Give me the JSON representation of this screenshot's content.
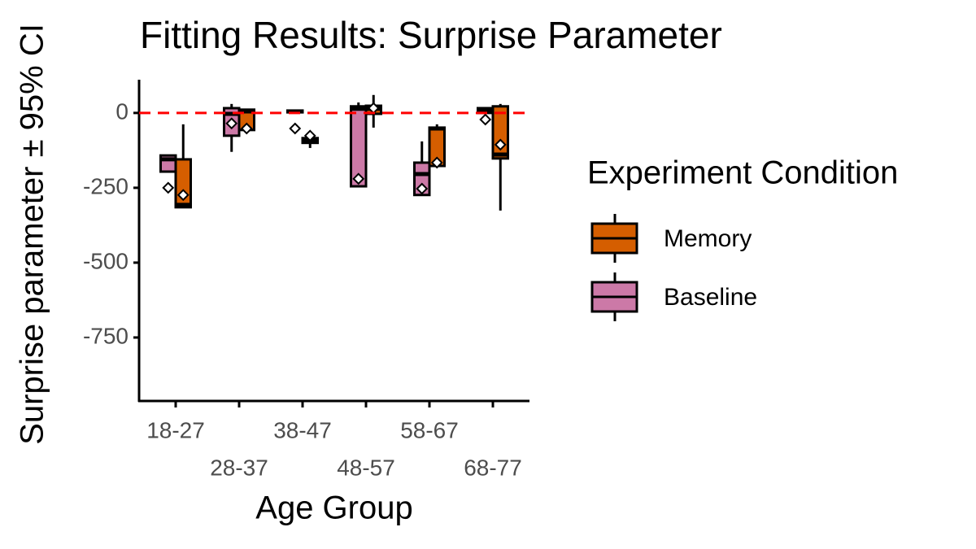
{
  "chart_data": {
    "type": "box",
    "title": "Fitting Results: Surprise Parameter",
    "x_label": "Age Group",
    "y_label": "Surprise parameter ± 95% CI",
    "legend_title": "Experiment Condition",
    "categories": [
      "18-27",
      "28-37",
      "38-47",
      "48-57",
      "58-67",
      "68-77"
    ],
    "series": [
      {
        "name": "Memory",
        "color": "#D55E00",
        "low": [
          -315,
          -57,
          -117,
          -49,
          -177,
          -326
        ],
        "q1": [
          -315,
          -57,
          -100,
          -3,
          -177,
          -152
        ],
        "median": [
          -307,
          5,
          -92,
          14,
          -52,
          -139
        ],
        "q3": [
          -155,
          11,
          -84,
          24,
          -49,
          22
        ],
        "high": [
          -38,
          11,
          -84,
          60,
          -38,
          30
        ],
        "mean": [
          -274,
          -52,
          -76,
          16,
          -166,
          -106
        ]
      },
      {
        "name": "Baseline",
        "color": "#CC79A7",
        "low": [
          -196,
          -130,
          2,
          -245,
          -274,
          0
        ],
        "q1": [
          -196,
          -76,
          2,
          -245,
          -274,
          0
        ],
        "median": [
          -155,
          -3,
          5,
          14,
          -204,
          8
        ],
        "q3": [
          -142,
          16,
          8,
          22,
          -166,
          16
        ],
        "high": [
          -142,
          30,
          8,
          35,
          -95,
          16
        ],
        "mean": [
          -250,
          -35,
          -52,
          -220,
          -253,
          -22
        ]
      }
    ],
    "reference_line": 0,
    "reference_color": "#FF0000",
    "ylim": [
      -962,
      111
    ],
    "yticks": [
      0,
      -250,
      -500,
      -750
    ]
  }
}
